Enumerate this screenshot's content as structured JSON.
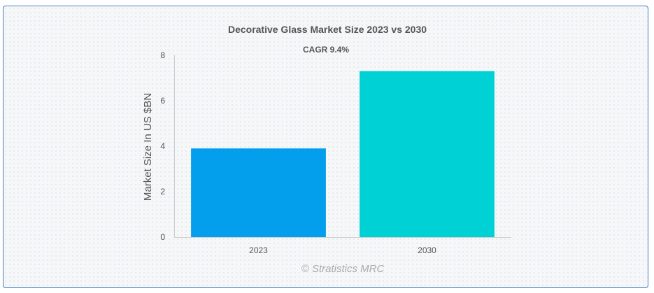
{
  "chart_data": {
    "type": "bar",
    "title": "Decorative Glass Market Size 2023 vs 2030",
    "subtitle": "CAGR 9.4%",
    "categories": [
      "2023",
      "2030"
    ],
    "values": [
      3.9,
      7.3
    ],
    "ylabel": "Market Size In US $BN",
    "xlabel": "",
    "ylim": [
      0,
      8
    ],
    "yticks": [
      0,
      2,
      4,
      6,
      8
    ],
    "colors": [
      "#039fec",
      "#00d1d4"
    ],
    "grid": false,
    "credit": "© Stratistics MRC"
  }
}
